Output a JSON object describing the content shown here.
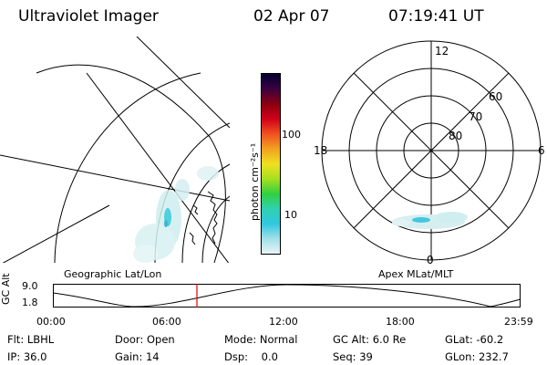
{
  "header": {
    "instrument": "Ultraviolet Imager",
    "date": "02 Apr 07",
    "time": "07:19:41 UT"
  },
  "left_panel": {
    "caption": "Geographic Lat/Lon"
  },
  "colorbar": {
    "unit_label": "photon cm⁻²s⁻¹",
    "tick_100": "100",
    "tick_10": "10",
    "colors": [
      "#000033",
      "#3c0040",
      "#8a0010",
      "#d00018",
      "#f05020",
      "#f2a020",
      "#f0e020",
      "#a8e020",
      "#30d040",
      "#30d0b0",
      "#30c8e0",
      "#a0e0e8",
      "#e8f4f8"
    ]
  },
  "polar_panel": {
    "caption": "Apex MLat/MLT",
    "mlt_12": "12",
    "mlt_18": "18",
    "mlt_6": "6",
    "mlt_0": "0",
    "lat_60": "60",
    "lat_70": "70",
    "lat_80": "80"
  },
  "altitude_plot": {
    "ylabel": "GC Alt",
    "ytick_top": "9.0",
    "ytick_bottom": "1.8",
    "xticks": [
      "00:00",
      "06:00",
      "12:00",
      "18:00",
      "23:59"
    ],
    "current_time_marker": "07:19:41",
    "marker_color": "#e00000"
  },
  "status": {
    "flt_label": "Flt:",
    "flt_value": "LBHL",
    "ip_label": "IP:",
    "ip_value": "36.0",
    "door_label": "Door:",
    "door_value": "Open",
    "gain_label": "Gain:",
    "gain_value": "14",
    "mode_label": "Mode:",
    "mode_value": "Normal",
    "dsp_label": "Dsp:",
    "dsp_value": "0.0",
    "gcalt_label": "GC Alt:",
    "gcalt_value": "6.0 Re",
    "seq_label": "Seq:",
    "seq_value": "39",
    "glat_label": "GLat:",
    "glat_value": "-60.2",
    "glon_label": "GLon:",
    "glon_value": "232.7"
  }
}
